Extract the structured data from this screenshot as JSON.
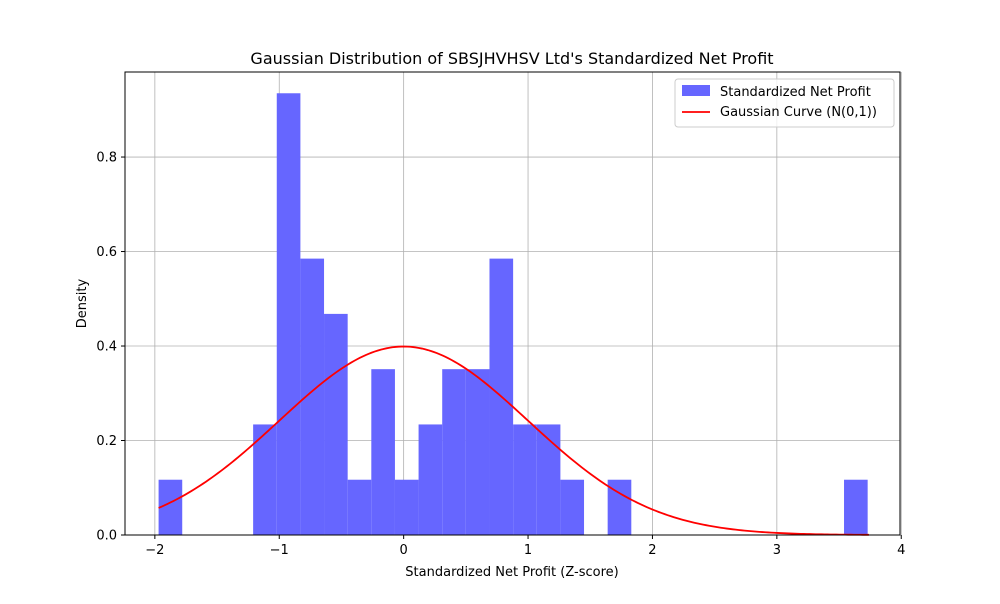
{
  "chart_data": {
    "type": "bar",
    "subtype": "histogram_with_curve",
    "title": "Gaussian Distribution of SBSJHVHSV Ltd's Standardized Net Profit",
    "xlabel": "Standardized Net Profit (Z-score)",
    "ylabel": "Density",
    "xlim": [
      -2.24,
      3.99
    ],
    "ylim": [
      0,
      0.98
    ],
    "xticks": [
      -2,
      -1,
      0,
      1,
      2,
      3,
      4
    ],
    "xtick_labels": [
      "−2",
      "−1",
      "0",
      "1",
      "2",
      "3",
      "4"
    ],
    "yticks": [
      0.0,
      0.2,
      0.4,
      0.6,
      0.8
    ],
    "ytick_labels": [
      "0.0",
      "0.2",
      "0.4",
      "0.6",
      "0.8"
    ],
    "grid": true,
    "legend_position": "top-right",
    "series": [
      {
        "name": "Standardized Net Profit",
        "kind": "histogram",
        "color": "#6666ff",
        "bin_start": -1.97,
        "bin_width": 0.19,
        "densities": [
          0.117,
          0,
          0,
          0,
          0.234,
          0.935,
          0.585,
          0.468,
          0.117,
          0.351,
          0.117,
          0.234,
          0.351,
          0.351,
          0.585,
          0.234,
          0.234,
          0.117,
          0,
          0.117,
          0,
          0,
          0,
          0,
          0,
          0,
          0,
          0,
          0,
          0.117
        ]
      },
      {
        "name": "Gaussian Curve (N(0,1))",
        "kind": "line",
        "color": "#ff0000",
        "x_range": [
          -1.97,
          3.74
        ],
        "function": "normal_pdf",
        "mean": 0,
        "std": 1
      }
    ]
  }
}
